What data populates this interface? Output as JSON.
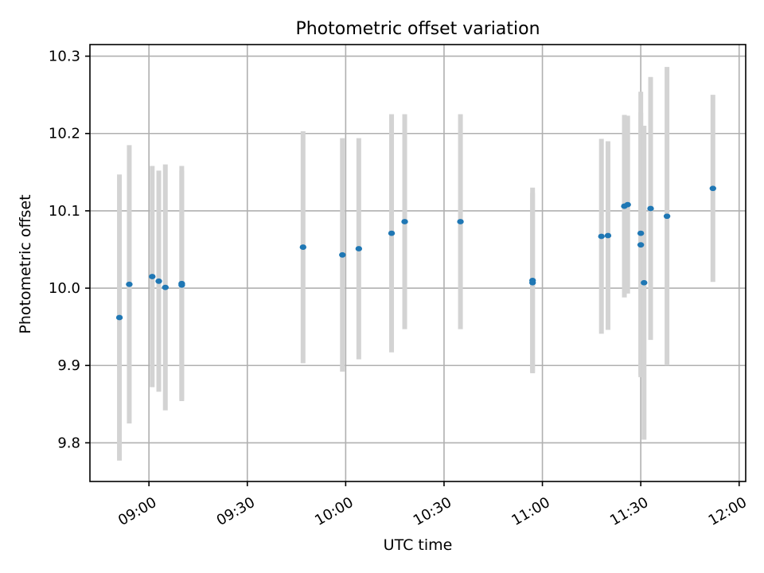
{
  "chart_data": {
    "type": "scatter",
    "title": "Photometric offset variation",
    "xlabel": "UTC time",
    "ylabel": "Photometric offset",
    "xlim": [
      "08:42",
      "12:02"
    ],
    "ylim": [
      9.75,
      10.315
    ],
    "x_ticks": [
      "09:00",
      "09:30",
      "10:00",
      "10:30",
      "11:00",
      "11:30",
      "12:00"
    ],
    "y_ticks": [
      9.8,
      9.9,
      10.0,
      10.1,
      10.2,
      10.3
    ],
    "y_tick_labels": [
      "9.8",
      "9.9",
      "10.0",
      "10.1",
      "10.2",
      "10.3"
    ],
    "grid": true,
    "marker_color": "#1f77b4",
    "errorbar_color": "#d3d3d3",
    "points": [
      {
        "x": "08:51",
        "y": 9.962,
        "err": 0.185
      },
      {
        "x": "08:54",
        "y": 10.005,
        "err": 0.18
      },
      {
        "x": "09:01",
        "y": 10.015,
        "err": 0.143
      },
      {
        "x": "09:03",
        "y": 10.009,
        "err": 0.143
      },
      {
        "x": "09:05",
        "y": 10.001,
        "err": 0.159
      },
      {
        "x": "09:10",
        "y": 10.006,
        "err": 0.152
      },
      {
        "x": "09:10",
        "y": 10.004,
        "err": 0.148
      },
      {
        "x": "09:47",
        "y": 10.053,
        "err": 0.15
      },
      {
        "x": "09:59",
        "y": 10.043,
        "err": 0.151
      },
      {
        "x": "10:04",
        "y": 10.051,
        "err": 0.143
      },
      {
        "x": "10:14",
        "y": 10.071,
        "err": 0.154
      },
      {
        "x": "10:18",
        "y": 10.086,
        "err": 0.139
      },
      {
        "x": "10:35",
        "y": 10.086,
        "err": 0.139
      },
      {
        "x": "10:57",
        "y": 10.01,
        "err": 0.12
      },
      {
        "x": "10:57",
        "y": 10.007,
        "err": 0.116
      },
      {
        "x": "11:18",
        "y": 10.067,
        "err": 0.126
      },
      {
        "x": "11:20",
        "y": 10.068,
        "err": 0.122
      },
      {
        "x": "11:25",
        "y": 10.106,
        "err": 0.118
      },
      {
        "x": "11:26",
        "y": 10.108,
        "err": 0.115
      },
      {
        "x": "11:30",
        "y": 10.071,
        "err": 0.183
      },
      {
        "x": "11:30",
        "y": 10.056,
        "err": 0.171
      },
      {
        "x": "11:31",
        "y": 10.007,
        "err": 0.203
      },
      {
        "x": "11:33",
        "y": 10.103,
        "err": 0.17
      },
      {
        "x": "11:38",
        "y": 10.093,
        "err": 0.193
      },
      {
        "x": "11:52",
        "y": 10.129,
        "err": 0.121
      }
    ]
  }
}
